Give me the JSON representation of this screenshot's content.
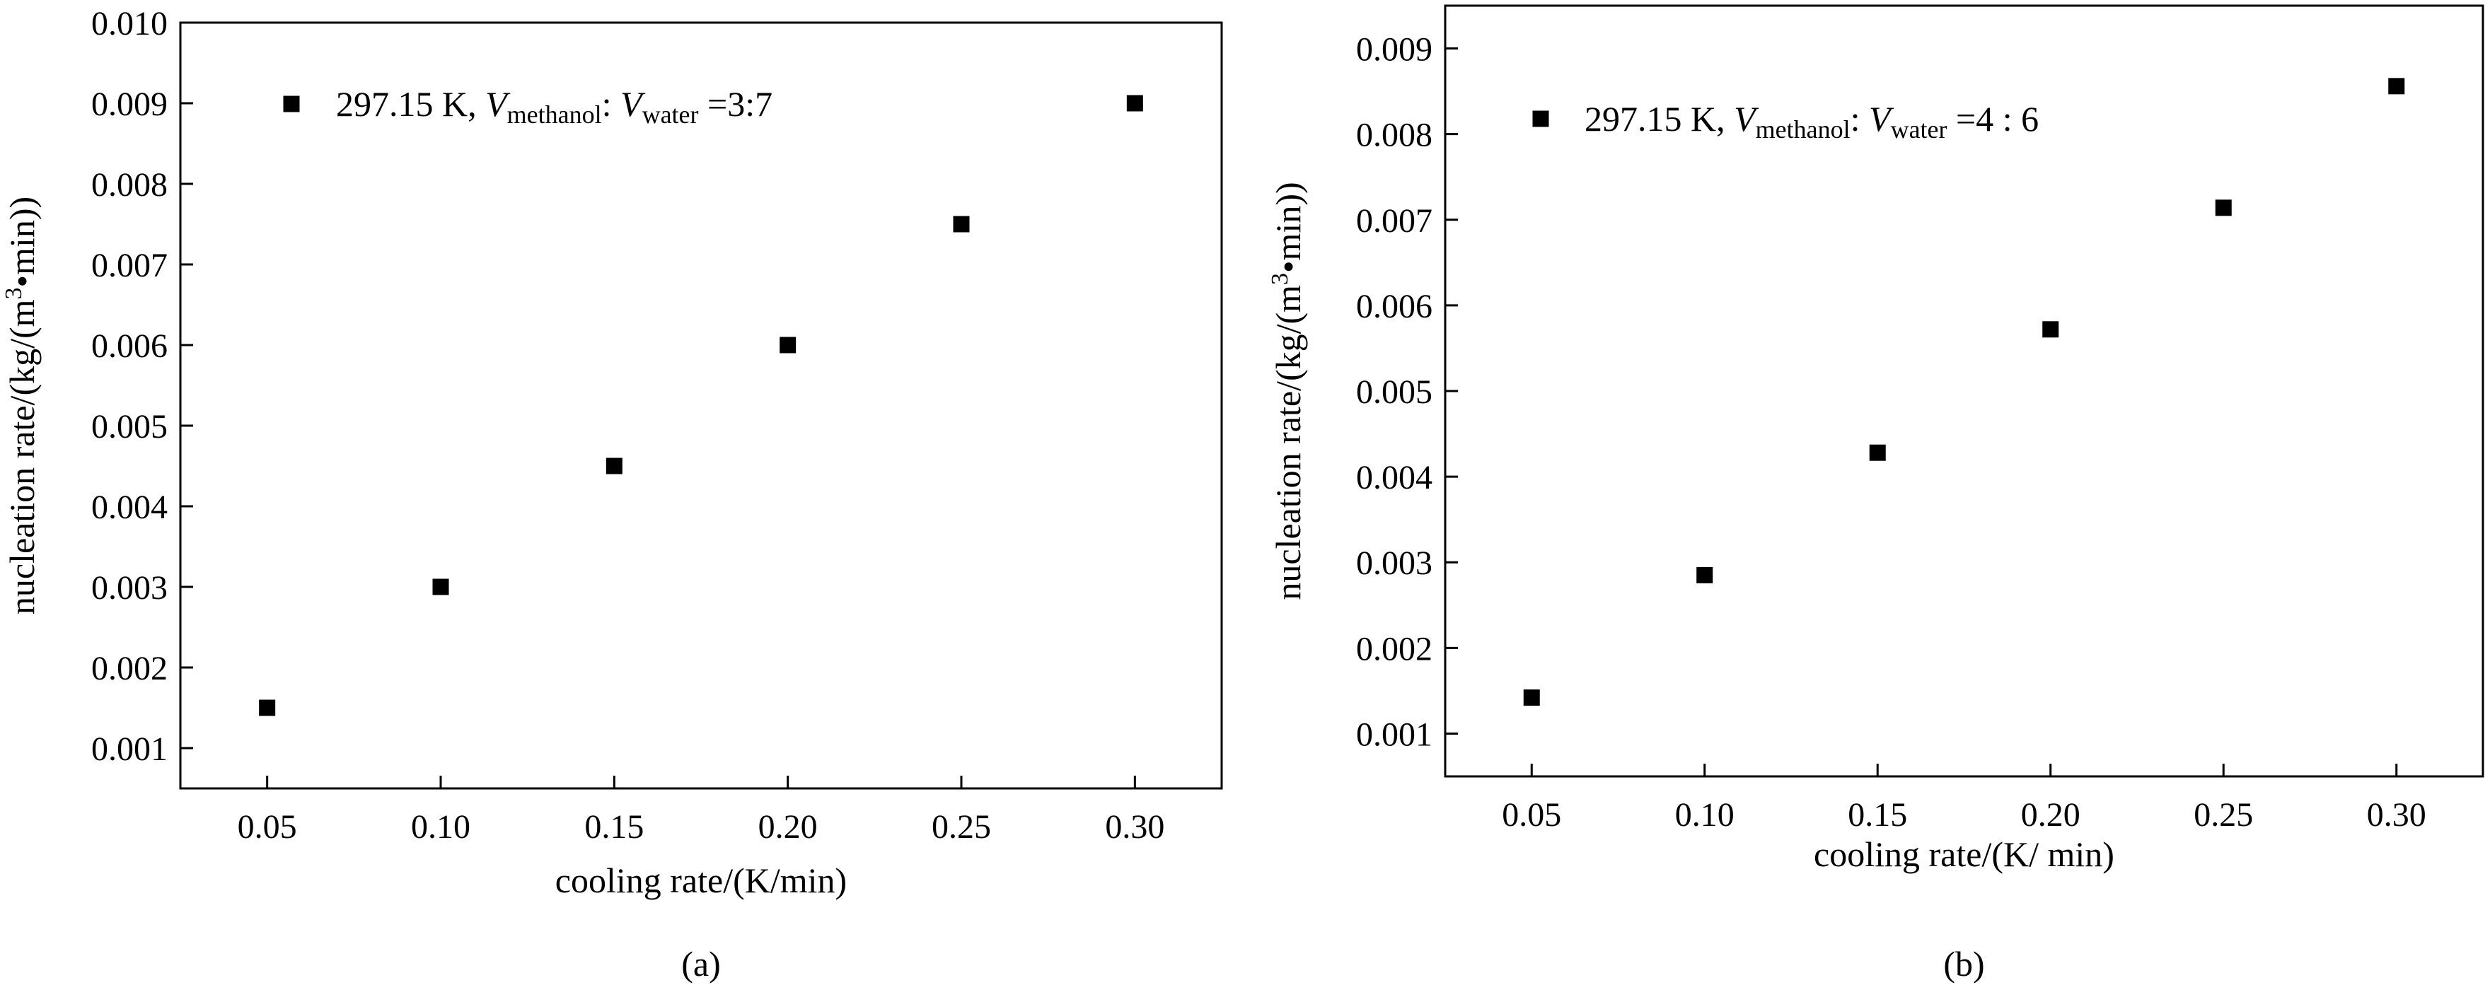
{
  "chart_data": [
    {
      "type": "scatter",
      "panel_label": "(a)",
      "xlabel": "cooling rate/(K/min)",
      "ylabel_main": "nucleation rate/(kg/(m",
      "ylabel_sup": "3",
      "ylabel_tail": "•min))",
      "xlim": [
        0.025,
        0.325
      ],
      "ylim": [
        0.0005,
        0.01
      ],
      "x_ticks": [
        "0.05",
        "0.10",
        "0.15",
        "0.20",
        "0.25",
        "0.30"
      ],
      "y_ticks": [
        "0.001",
        "0.002",
        "0.003",
        "0.004",
        "0.005",
        "0.006",
        "0.007",
        "0.008",
        "0.009",
        "0.010"
      ],
      "grid": false,
      "legend_position": "top-left",
      "legend": {
        "prefix": "297.15 K,",
        "v1": "V",
        "sub1": "methanol",
        "colon": ":",
        "v2": "V",
        "sub2": "water",
        "ratio": "=3:7"
      },
      "series": [
        {
          "marker": "square",
          "color": "#000000",
          "x": [
            0.05,
            0.1,
            0.15,
            0.2,
            0.25,
            0.3
          ],
          "y": [
            0.0015,
            0.003,
            0.0045,
            0.006,
            0.0075,
            0.009
          ]
        }
      ]
    },
    {
      "type": "scatter",
      "panel_label": "(b)",
      "xlabel": "cooling rate/(K/ min)",
      "ylabel_main": "nucleation rate/(kg/(m",
      "ylabel_sup": "3",
      "ylabel_tail": "•min))",
      "xlim": [
        0.025,
        0.325
      ],
      "ylim": [
        0.0005,
        0.0095
      ],
      "x_ticks": [
        "0.05",
        "0.10",
        "0.15",
        "0.20",
        "0.25",
        "0.30"
      ],
      "y_ticks": [
        "0.001",
        "0.002",
        "0.003",
        "0.004",
        "0.005",
        "0.006",
        "0.007",
        "0.008",
        "0.009"
      ],
      "grid": false,
      "legend_position": "top-left",
      "legend": {
        "prefix": "297.15 K,",
        "v1": "V",
        "sub1": "methanol",
        "colon": ":",
        "v2": "V",
        "sub2": "water",
        "ratio": "=4 : 6"
      },
      "series": [
        {
          "marker": "square",
          "color": "#000000",
          "x": [
            0.05,
            0.1,
            0.15,
            0.2,
            0.25,
            0.3
          ],
          "y": [
            0.00142,
            0.00285,
            0.00428,
            0.00572,
            0.00714,
            0.00856
          ]
        }
      ]
    }
  ]
}
